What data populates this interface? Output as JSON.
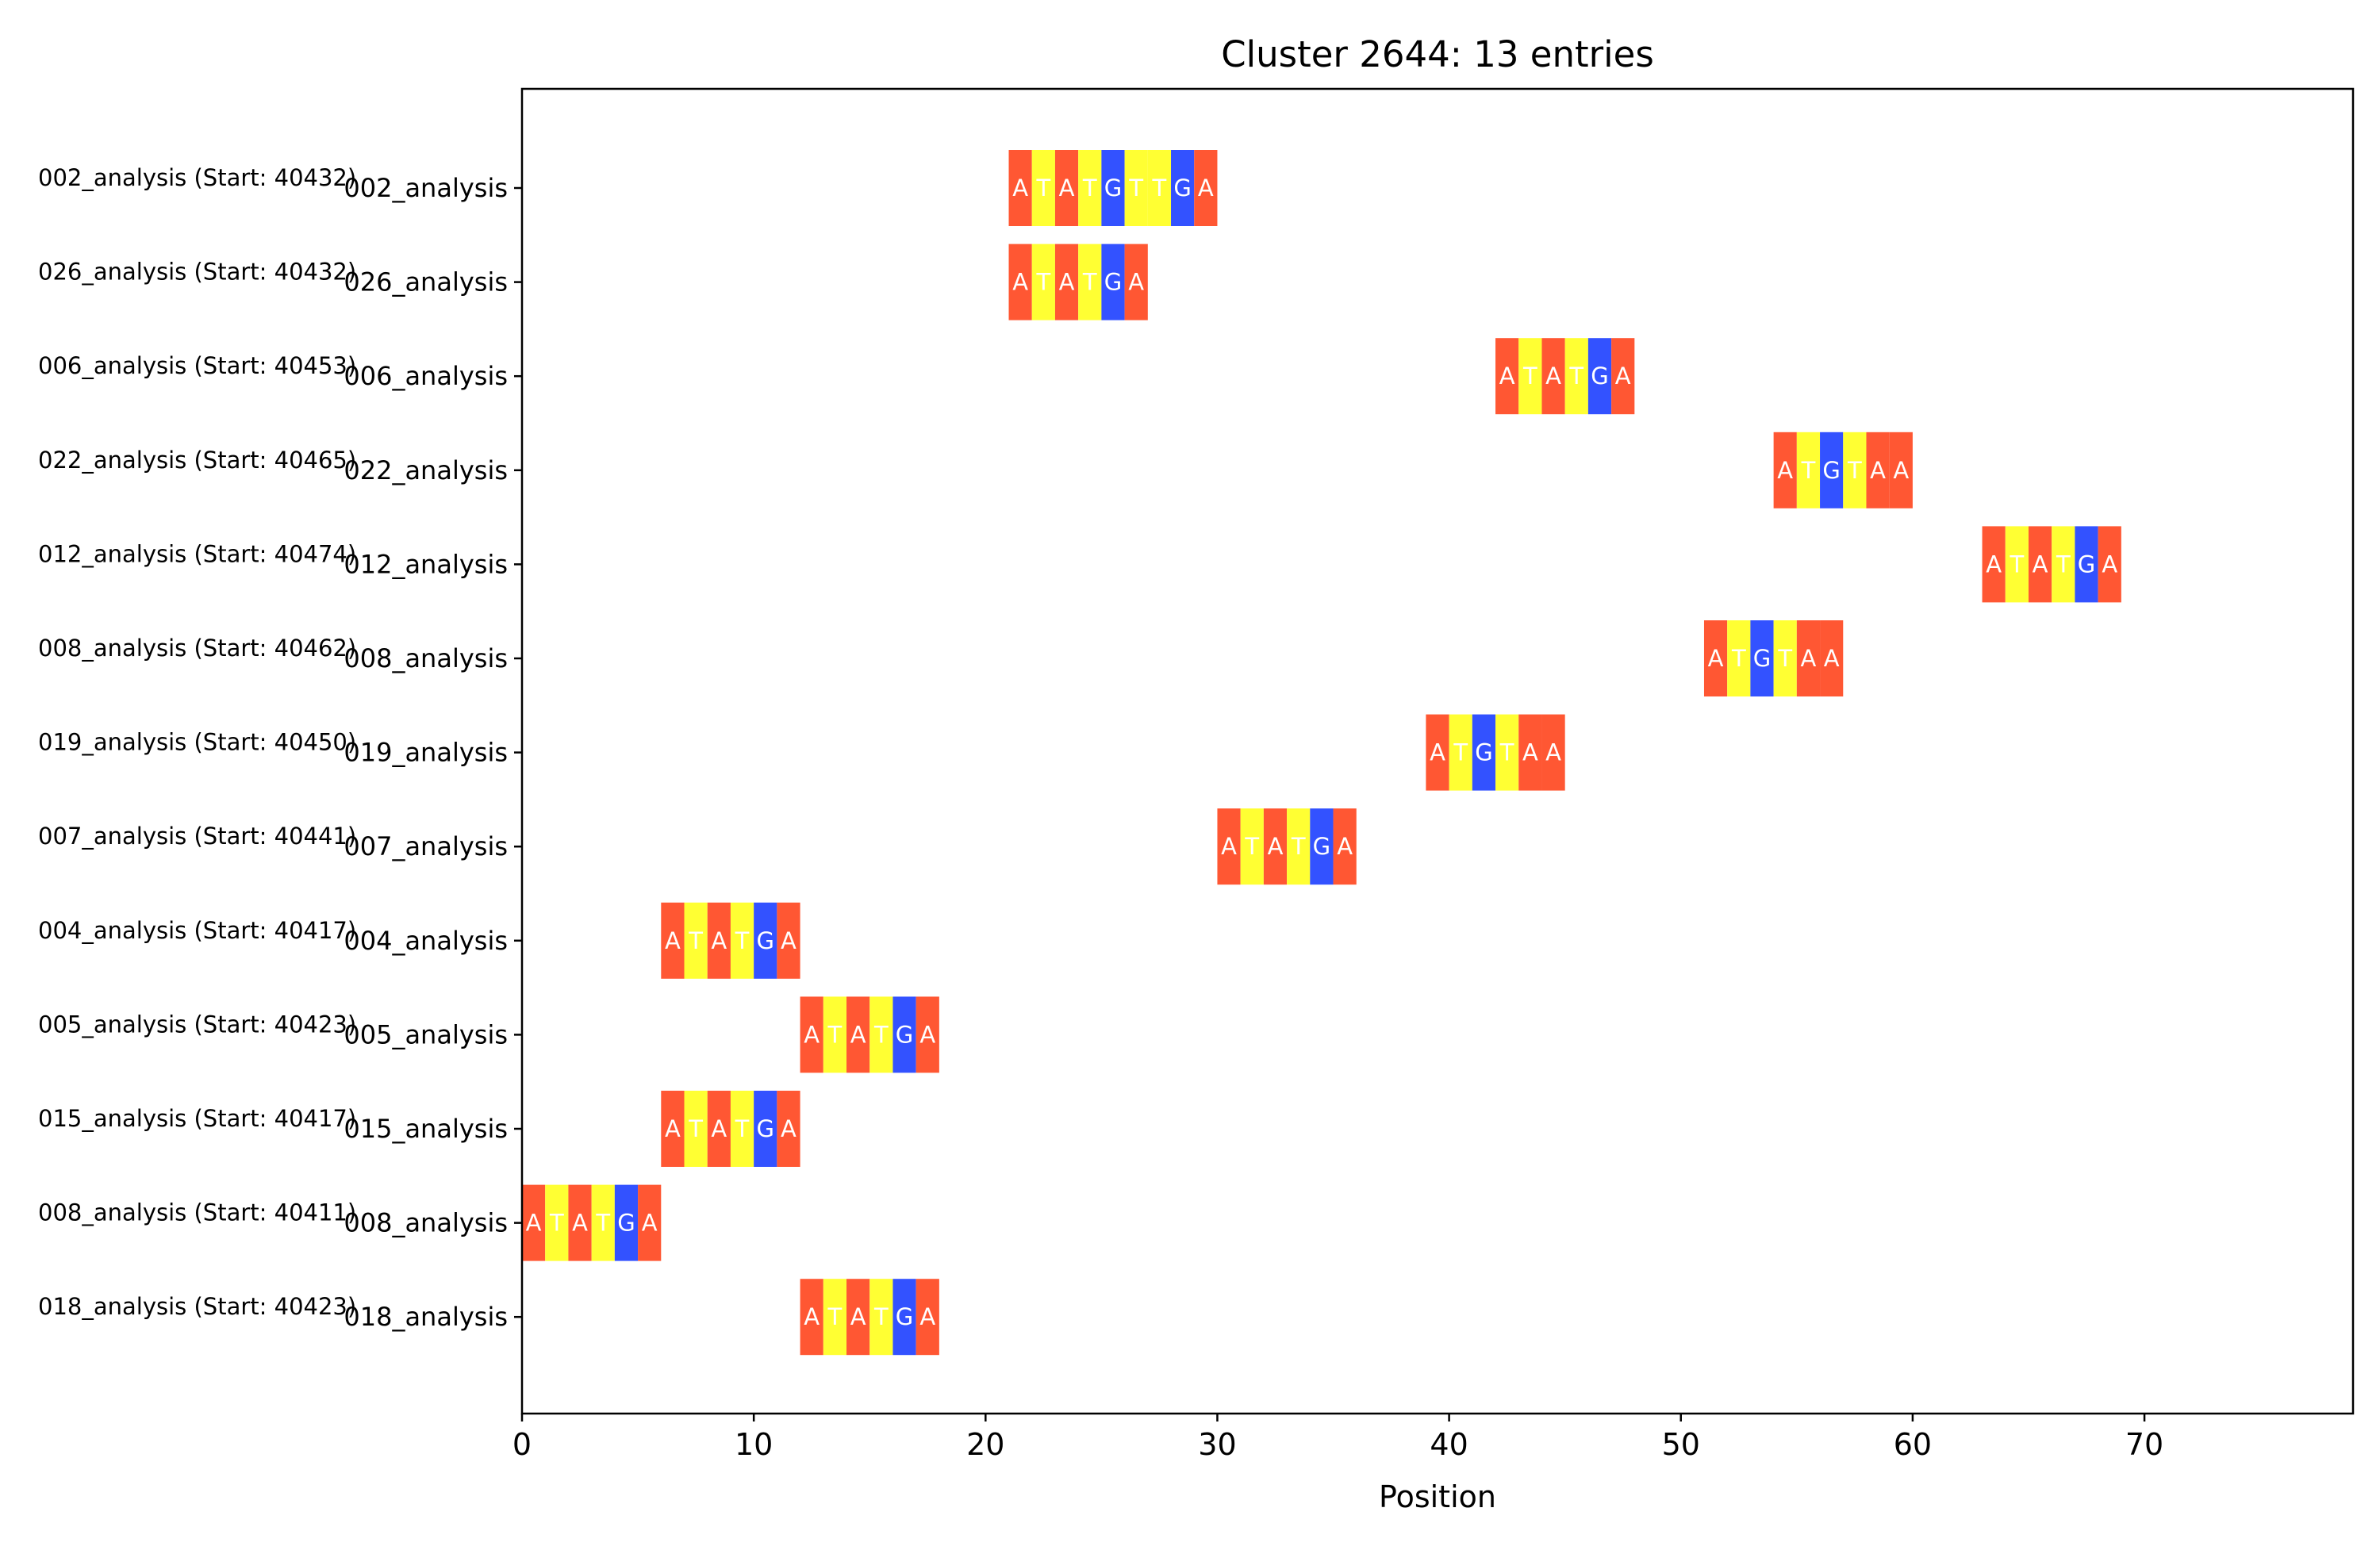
{
  "chart_data": {
    "type": "sequence-alignment",
    "title": "Cluster 2644: 13 entries",
    "xlabel": "Position",
    "ylabel": "",
    "xlim": [
      0,
      79
    ],
    "x_ticks": [
      0,
      10,
      20,
      30,
      40,
      50,
      60,
      70
    ],
    "grid": false,
    "base_colors": {
      "A": "#ff5733",
      "T": "#ffff33",
      "G": "#3352ff",
      "C": "#33ff57"
    },
    "rows": [
      {
        "label": "002_analysis",
        "annotation": "002_analysis (Start: 40432)",
        "start": 21,
        "sequence": "ATATGTTGA"
      },
      {
        "label": "026_analysis",
        "annotation": "026_analysis (Start: 40432)",
        "start": 21,
        "sequence": "ATATGA"
      },
      {
        "label": "006_analysis",
        "annotation": "006_analysis (Start: 40453)",
        "start": 42,
        "sequence": "ATATGA"
      },
      {
        "label": "022_analysis",
        "annotation": "022_analysis (Start: 40465)",
        "start": 54,
        "sequence": "ATGTAA"
      },
      {
        "label": "012_analysis",
        "annotation": "012_analysis (Start: 40474)",
        "start": 63,
        "sequence": "ATATGA"
      },
      {
        "label": "008_analysis",
        "annotation": "008_analysis (Start: 40462)",
        "start": 51,
        "sequence": "ATGTAA"
      },
      {
        "label": "019_analysis",
        "annotation": "019_analysis (Start: 40450)",
        "start": 39,
        "sequence": "ATGTAA"
      },
      {
        "label": "007_analysis",
        "annotation": "007_analysis (Start: 40441)",
        "start": 30,
        "sequence": "ATATGA"
      },
      {
        "label": "004_analysis",
        "annotation": "004_analysis (Start: 40417)",
        "start": 6,
        "sequence": "ATATGA"
      },
      {
        "label": "005_analysis",
        "annotation": "005_analysis (Start: 40423)",
        "start": 12,
        "sequence": "ATATGA"
      },
      {
        "label": "015_analysis",
        "annotation": "015_analysis (Start: 40417)",
        "start": 6,
        "sequence": "ATATGA"
      },
      {
        "label": "008_analysis",
        "annotation": "008_analysis (Start: 40411)",
        "start": 0,
        "sequence": "ATATGA"
      },
      {
        "label": "018_analysis",
        "annotation": "018_analysis (Start: 40423)",
        "start": 12,
        "sequence": "ATATGA"
      }
    ]
  }
}
